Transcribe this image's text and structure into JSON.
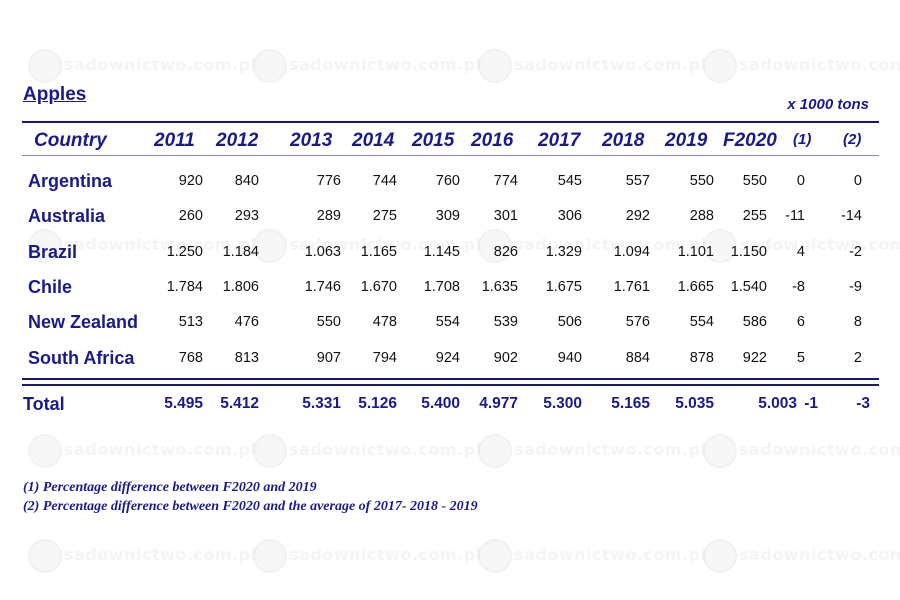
{
  "title": "Apples",
  "unit": "x 1000 tons",
  "watermark": "sadownictwo.com.pl",
  "colors": {
    "heading": "#1a1a8c",
    "text": "#111111",
    "rule": "#1a1a6c"
  },
  "chart_data": {
    "type": "table",
    "columns": [
      "Country",
      "2011",
      "2012",
      "2013",
      "2014",
      "2015",
      "2016",
      "2017",
      "2018",
      "2019",
      "F2020",
      "(1)",
      "(2)"
    ],
    "rows": [
      {
        "country": "Argentina",
        "values": [
          "920",
          "840",
          "776",
          "744",
          "760",
          "774",
          "545",
          "557",
          "550",
          "550",
          "0",
          "0"
        ]
      },
      {
        "country": "Australia",
        "values": [
          "260",
          "293",
          "289",
          "275",
          "309",
          "301",
          "306",
          "292",
          "288",
          "255",
          "-11",
          "-14"
        ]
      },
      {
        "country": "Brazil",
        "values": [
          "1.250",
          "1.184",
          "1.063",
          "1.165",
          "1.145",
          "826",
          "1.329",
          "1.094",
          "1.101",
          "1.150",
          "4",
          "-2"
        ]
      },
      {
        "country": "Chile",
        "values": [
          "1.784",
          "1.806",
          "1.746",
          "1.670",
          "1.708",
          "1.635",
          "1.675",
          "1.761",
          "1.665",
          "1.540",
          "-8",
          "-9"
        ]
      },
      {
        "country": "New Zealand",
        "values": [
          "513",
          "476",
          "550",
          "478",
          "554",
          "539",
          "506",
          "576",
          "554",
          "586",
          "6",
          "8"
        ]
      },
      {
        "country": "South Africa",
        "values": [
          "768",
          "813",
          "907",
          "794",
          "924",
          "902",
          "940",
          "884",
          "878",
          "922",
          "5",
          "2"
        ]
      }
    ],
    "total": {
      "label": "Total",
      "values": [
        "5.495",
        "5.412",
        "5.331",
        "5.126",
        "5.400",
        "4.977",
        "5.300",
        "5.165",
        "5.035",
        "5.003",
        "-1",
        "-3"
      ]
    }
  },
  "footnotes": [
    "(1) Percentage difference between F2020 and 2019",
    "(2) Percentage difference between F2020 and the average of  2017- 2018 - 2019"
  ]
}
